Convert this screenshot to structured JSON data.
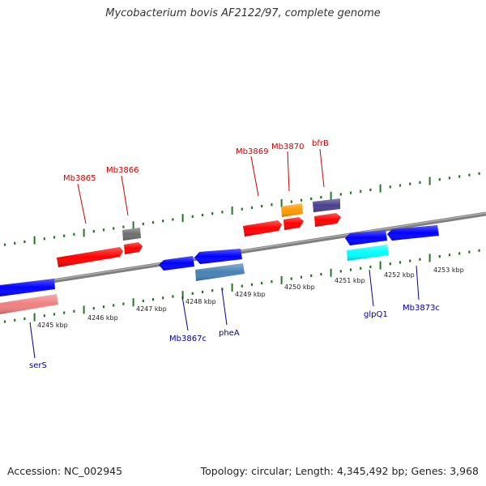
{
  "title": "Mycobacterium bovis AF2122/97, complete genome",
  "footer": {
    "accession": "Accession: NC_002945",
    "topology": "Topology: circular; Length: 4,345,492 bp; Genes: 3,968"
  },
  "scale": {
    "labels": [
      "4245 kbp",
      "4246 kbp",
      "4247 kbp",
      "4248 kbp",
      "4249 kbp",
      "4250 kbp",
      "4251 kbp",
      "4252 kbp",
      "4253 kbp"
    ]
  },
  "colors": {
    "backbone": "#8c8c8c",
    "ticks": "#1f7a1f",
    "forward_label": "#cc0000",
    "reverse_label": "#00009c",
    "red": "#ff0000",
    "gray": "#6e6e6e",
    "orange": "#ff9900",
    "purple": "#4a3f8c",
    "blue": "#0000ff",
    "steelblue": "#4682b4",
    "cyan": "#00ffff",
    "pink": "#f08080"
  },
  "forward_labels": [
    "Mb3865",
    "Mb3866",
    "Mb3869",
    "Mb3870",
    "bfrB"
  ],
  "reverse_labels": [
    "serS",
    "Mb3867c",
    "pheA",
    "glpQ1",
    "Mb3873c"
  ]
}
